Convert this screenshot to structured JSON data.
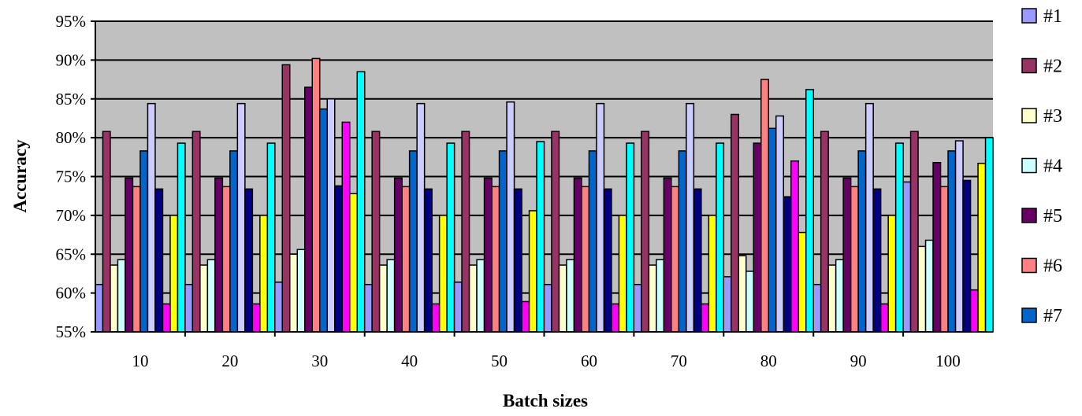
{
  "chart_data": {
    "type": "bar",
    "title": "",
    "xlabel": "Batch sizes",
    "ylabel": "Accuracy",
    "ylim": [
      0.55,
      0.95
    ],
    "y_ticks": [
      0.55,
      0.6,
      0.65,
      0.7,
      0.75,
      0.8,
      0.85,
      0.9,
      0.95
    ],
    "y_tick_labels": [
      "55%",
      "60%",
      "65%",
      "70%",
      "75%",
      "80%",
      "85%",
      "90%",
      "95%"
    ],
    "categories": [
      "10",
      "20",
      "30",
      "40",
      "50",
      "60",
      "70",
      "80",
      "90",
      "100"
    ],
    "grid": "horizontal",
    "plot_background": "#c0c0c0",
    "legend_position": "right",
    "series": [
      {
        "name": "#1",
        "color": "#9999ff",
        "values": [
          0.611,
          0.611,
          0.614,
          0.611,
          0.614,
          0.611,
          0.611,
          0.621,
          0.611,
          0.743
        ]
      },
      {
        "name": "#2",
        "color": "#993366",
        "values": [
          0.808,
          0.808,
          0.894,
          0.808,
          0.808,
          0.808,
          0.808,
          0.83,
          0.808,
          0.808
        ]
      },
      {
        "name": "#3",
        "color": "#ffffcc",
        "values": [
          0.636,
          0.636,
          0.65,
          0.636,
          0.636,
          0.636,
          0.636,
          0.648,
          0.636,
          0.66
        ]
      },
      {
        "name": "#4",
        "color": "#ccffff",
        "values": [
          0.643,
          0.643,
          0.656,
          0.643,
          0.643,
          0.643,
          0.643,
          0.628,
          0.643,
          0.668
        ]
      },
      {
        "name": "#5",
        "color": "#660066",
        "values": [
          0.748,
          0.748,
          0.865,
          0.748,
          0.748,
          0.748,
          0.748,
          0.793,
          0.748,
          0.768
        ]
      },
      {
        "name": "#6",
        "color": "#ff8080",
        "values": [
          0.737,
          0.737,
          0.902,
          0.737,
          0.737,
          0.737,
          0.737,
          0.875,
          0.737,
          0.737
        ]
      },
      {
        "name": "#7",
        "color": "#0066cc",
        "values": [
          0.783,
          0.783,
          0.837,
          0.783,
          0.783,
          0.783,
          0.783,
          0.812,
          0.783,
          0.783
        ]
      },
      {
        "name": "",
        "color": "#ccccff",
        "values": [
          0.844,
          0.844,
          0.85,
          0.844,
          0.846,
          0.844,
          0.844,
          0.828,
          0.844,
          0.796
        ]
      },
      {
        "name": "",
        "color": "#000080",
        "values": [
          0.734,
          0.734,
          0.738,
          0.734,
          0.734,
          0.734,
          0.734,
          0.724,
          0.734,
          0.745
        ]
      },
      {
        "name": "",
        "color": "#ff00ff",
        "values": [
          0.586,
          0.586,
          0.82,
          0.586,
          0.589,
          0.586,
          0.586,
          0.77,
          0.586,
          0.604
        ]
      },
      {
        "name": "",
        "color": "#ffff00",
        "values": [
          0.7,
          0.7,
          0.728,
          0.7,
          0.706,
          0.7,
          0.7,
          0.678,
          0.7,
          0.767
        ]
      },
      {
        "name": "",
        "color": "#00ffff",
        "values": [
          0.793,
          0.793,
          0.885,
          0.793,
          0.795,
          0.793,
          0.793,
          0.862,
          0.793,
          0.8
        ]
      }
    ]
  }
}
